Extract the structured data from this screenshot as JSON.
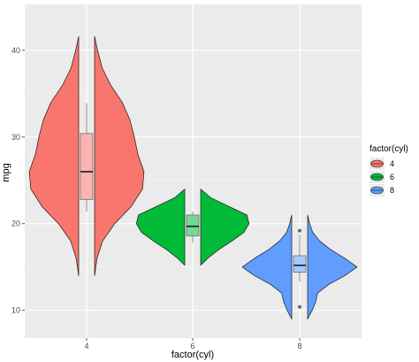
{
  "chart_data": {
    "type": "violin",
    "title": "",
    "xlabel": "factor(cyl)",
    "ylabel": "mpg",
    "categories": [
      "4",
      "6",
      "8"
    ],
    "yticks": [
      10,
      20,
      30,
      40
    ],
    "ylim": [
      6.8,
      45.3
    ],
    "grid": true,
    "legend_position": "right",
    "legend": {
      "title": "factor(cyl)",
      "entries": [
        {
          "label": "4",
          "color": "#F8766D"
        },
        {
          "label": "6",
          "color": "#00BA38"
        },
        {
          "label": "8",
          "color": "#619CFF"
        }
      ]
    },
    "series": [
      {
        "category": "4",
        "color": "#F8766D",
        "box": {
          "q1": 22.8,
          "median": 26.0,
          "q3": 30.4,
          "whisker_low": 21.4,
          "whisker_high": 33.9,
          "outliers": []
        },
        "violin": [
          {
            "y": 14.0,
            "d": 0.0
          },
          {
            "y": 16.0,
            "d": 0.05
          },
          {
            "y": 18.0,
            "d": 0.16
          },
          {
            "y": 20.0,
            "d": 0.4
          },
          {
            "y": 22.0,
            "d": 0.73
          },
          {
            "y": 24.0,
            "d": 0.95
          },
          {
            "y": 26.0,
            "d": 0.98
          },
          {
            "y": 28.0,
            "d": 0.86
          },
          {
            "y": 30.0,
            "d": 0.79
          },
          {
            "y": 32.0,
            "d": 0.7
          },
          {
            "y": 34.0,
            "d": 0.55
          },
          {
            "y": 36.0,
            "d": 0.32
          },
          {
            "y": 38.0,
            "d": 0.15
          },
          {
            "y": 40.0,
            "d": 0.06
          },
          {
            "y": 41.6,
            "d": 0.0
          }
        ]
      },
      {
        "category": "6",
        "color": "#00BA38",
        "box": {
          "q1": 18.6,
          "median": 19.7,
          "q3": 21.0,
          "whisker_low": 17.8,
          "whisker_high": 21.4,
          "outliers": []
        },
        "violin": [
          {
            "y": 15.2,
            "d": 0.0
          },
          {
            "y": 16.0,
            "d": 0.14
          },
          {
            "y": 17.0,
            "d": 0.36
          },
          {
            "y": 18.0,
            "d": 0.62
          },
          {
            "y": 19.0,
            "d": 0.86
          },
          {
            "y": 20.0,
            "d": 0.96
          },
          {
            "y": 21.0,
            "d": 0.92
          },
          {
            "y": 22.0,
            "d": 0.56
          },
          {
            "y": 23.0,
            "d": 0.2
          },
          {
            "y": 24.0,
            "d": 0.0
          }
        ]
      },
      {
        "category": "8",
        "color": "#619CFF",
        "box": {
          "q1": 14.4,
          "median": 15.2,
          "q3": 16.3,
          "whisker_low": 13.3,
          "whisker_high": 18.7,
          "outliers": [
            10.4,
            19.2
          ]
        },
        "violin": [
          {
            "y": 9.0,
            "d": 0.0
          },
          {
            "y": 10.0,
            "d": 0.09
          },
          {
            "y": 11.0,
            "d": 0.16
          },
          {
            "y": 12.0,
            "d": 0.2
          },
          {
            "y": 13.0,
            "d": 0.42
          },
          {
            "y": 14.0,
            "d": 0.74
          },
          {
            "y": 15.0,
            "d": 0.98
          },
          {
            "y": 16.0,
            "d": 0.74
          },
          {
            "y": 17.0,
            "d": 0.46
          },
          {
            "y": 18.0,
            "d": 0.24
          },
          {
            "y": 19.0,
            "d": 0.1
          },
          {
            "y": 20.0,
            "d": 0.04
          },
          {
            "y": 21.0,
            "d": 0.0
          }
        ]
      }
    ]
  }
}
